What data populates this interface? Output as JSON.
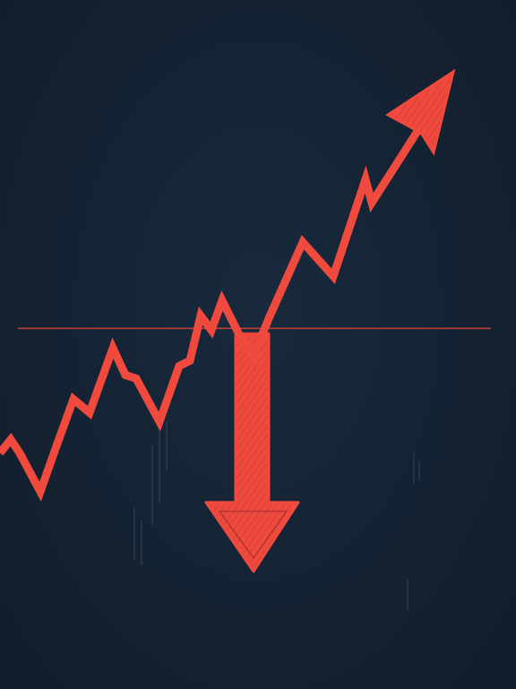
{
  "illustration": {
    "subject": "zigzag-trend-arrow-with-downward-arrow",
    "colors": {
      "background": "#142232",
      "accent": "#f04a3e",
      "accent_dark": "#c9372e",
      "guide_line": "#d8443a",
      "faint_ticks": "#5a6472"
    },
    "icons": [
      "trend-up-arrow-icon",
      "down-arrow-icon"
    ]
  }
}
